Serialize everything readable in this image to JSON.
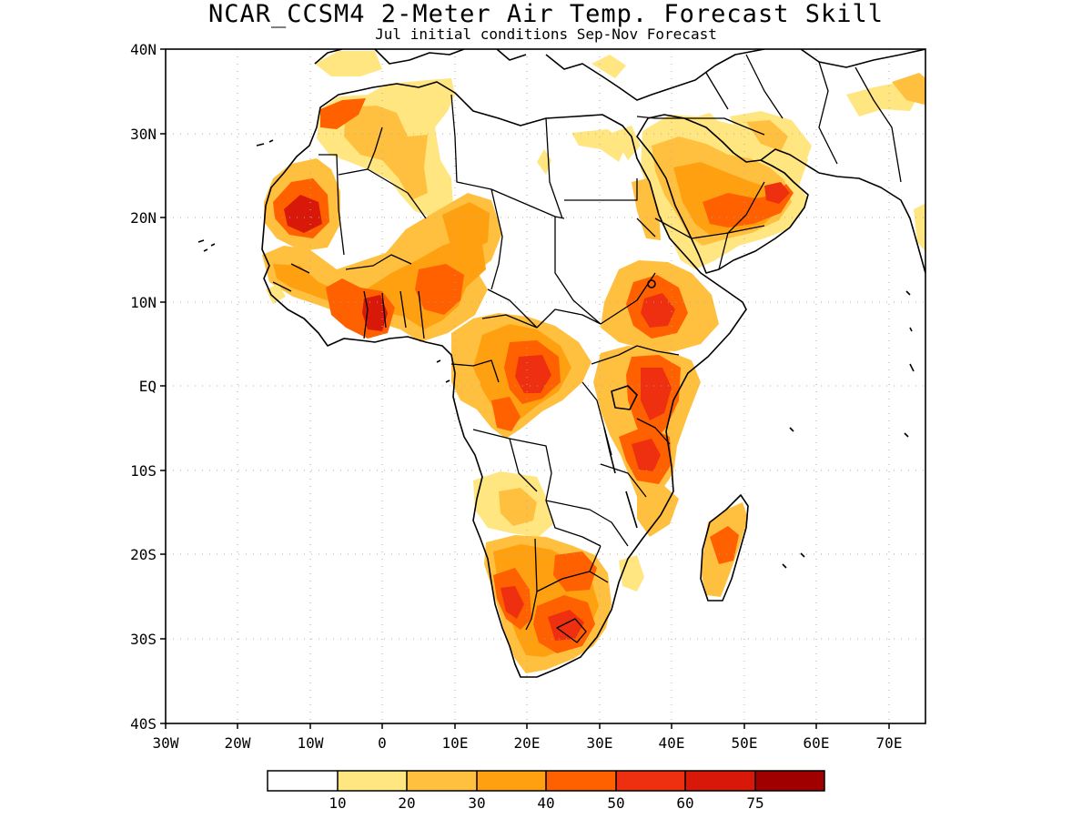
{
  "title": "NCAR_CCSM4 2-Meter Air Temp. Forecast Skill",
  "subtitle": "Jul initial conditions   Sep-Nov Forecast",
  "map": {
    "lon_range": [
      -30,
      75
    ],
    "lat_range": [
      -40,
      40
    ],
    "lat_ticks": [
      {
        "value": 40,
        "label": "40N"
      },
      {
        "value": 30,
        "label": "30N"
      },
      {
        "value": 20,
        "label": "20N"
      },
      {
        "value": 10,
        "label": "10N"
      },
      {
        "value": 0,
        "label": "EQ"
      },
      {
        "value": -10,
        "label": "10S"
      },
      {
        "value": -20,
        "label": "20S"
      },
      {
        "value": -30,
        "label": "30S"
      },
      {
        "value": -40,
        "label": "40S"
      }
    ],
    "lon_ticks": [
      {
        "value": -30,
        "label": "30W"
      },
      {
        "value": -20,
        "label": "20W"
      },
      {
        "value": -10,
        "label": "10W"
      },
      {
        "value": 0,
        "label": "0"
      },
      {
        "value": 10,
        "label": "10E"
      },
      {
        "value": 20,
        "label": "20E"
      },
      {
        "value": 30,
        "label": "30E"
      },
      {
        "value": 40,
        "label": "40E"
      },
      {
        "value": 50,
        "label": "50E"
      },
      {
        "value": 60,
        "label": "60E"
      },
      {
        "value": 70,
        "label": "70E"
      }
    ],
    "colors": {
      "c10": "#ffe680",
      "c20": "#ffc040",
      "c30": "#ffa010",
      "c40": "#ff6000",
      "c50": "#ee3010",
      "c60": "#d81808",
      "c75": "#a00000"
    }
  },
  "legend": {
    "boundaries": [
      "10",
      "20",
      "30",
      "40",
      "50",
      "60",
      "75"
    ],
    "colors": [
      "#ffffff",
      "#ffe680",
      "#ffc040",
      "#ffa010",
      "#ff6000",
      "#ee3010",
      "#d81808",
      "#a00000"
    ]
  }
}
